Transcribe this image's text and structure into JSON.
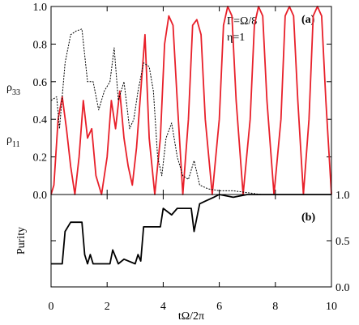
{
  "chart_data": [
    {
      "type": "line",
      "ylabels": [
        {
          "symbol": "ρ",
          "subscript": "33"
        },
        {
          "symbol": "ρ",
          "subscript": "11"
        }
      ],
      "annotations": [
        "Γ=Ω/8",
        "η=1",
        "(a)"
      ],
      "xlim": [
        0,
        10
      ],
      "xticks": [
        0,
        2,
        4,
        6,
        8,
        10
      ],
      "ylim": [
        0,
        1
      ],
      "yticks": [
        {
          "value": 0,
          "label": "0.0"
        },
        0.2,
        0.4,
        0.6,
        0.8,
        {
          "value": 1,
          "label": "1.0"
        }
      ],
      "series": [
        {
          "color": "#e8202a",
          "style": "solid",
          "x": [
            0,
            0.1,
            0.25,
            0.4,
            0.55,
            0.7,
            0.85,
            1.0,
            1.15,
            1.3,
            1.45,
            1.6,
            1.8,
            2.0,
            2.15,
            2.3,
            2.45,
            2.6,
            2.75,
            2.9,
            3.05,
            3.2,
            3.35,
            3.5,
            3.7,
            3.9,
            4.05,
            4.2,
            4.35,
            4.5,
            4.7,
            4.9,
            5.05,
            5.2,
            5.35,
            5.5,
            5.75,
            6.0,
            6.15,
            6.3,
            6.45,
            6.6,
            6.85,
            7.1,
            7.25,
            7.4,
            7.55,
            7.7,
            7.95,
            8.2,
            8.35,
            8.5,
            8.65,
            8.8,
            9.0,
            9.2,
            9.35,
            9.5,
            9.65,
            9.8,
            10.0
          ],
          "values": [
            0,
            0.05,
            0.4,
            0.52,
            0.35,
            0.15,
            0,
            0.2,
            0.5,
            0.3,
            0.35,
            0.1,
            0,
            0.2,
            0.5,
            0.35,
            0.55,
            0.3,
            0.15,
            0.05,
            0.25,
            0.55,
            0.85,
            0.3,
            0,
            0.3,
            0.8,
            0.95,
            0.9,
            0.5,
            0,
            0.4,
            0.9,
            0.93,
            0.85,
            0.4,
            0,
            0.4,
            0.9,
            1.0,
            0.95,
            0.5,
            0,
            0.4,
            0.9,
            1.0,
            0.95,
            0.5,
            0,
            0.4,
            0.95,
            1.0,
            0.95,
            0.5,
            0,
            0.4,
            0.95,
            1.0,
            0.95,
            0.5,
            0
          ]
        },
        {
          "color": "#000000",
          "style": "dotted",
          "x": [
            0,
            0.2,
            0.3,
            0.5,
            0.7,
            0.9,
            1.1,
            1.3,
            1.5,
            1.7,
            1.9,
            2.1,
            2.25,
            2.4,
            2.6,
            2.8,
            2.95,
            3.1,
            3.3,
            3.5,
            3.65,
            3.8,
            3.95,
            4.1,
            4.3,
            4.5,
            4.7,
            4.9,
            5.1,
            5.3,
            5.6,
            6.0,
            6.5,
            7.0,
            7.5,
            8,
            9,
            10
          ],
          "values": [
            0.5,
            0.52,
            0.35,
            0.7,
            0.85,
            0.87,
            0.88,
            0.6,
            0.6,
            0.45,
            0.55,
            0.6,
            0.78,
            0.5,
            0.6,
            0.35,
            0.4,
            0.55,
            0.7,
            0.68,
            0.55,
            0.2,
            0.1,
            0.3,
            0.38,
            0.2,
            0.1,
            0.08,
            0.18,
            0.05,
            0.03,
            0.02,
            0.02,
            0.01,
            0,
            0,
            0,
            0
          ]
        }
      ]
    },
    {
      "type": "line",
      "ylabel": "Purity",
      "xlabel": "tΩ/2π",
      "annotations": [
        "(b)"
      ],
      "xlim": [
        0,
        10
      ],
      "xticks": [
        0,
        2,
        4,
        6,
        8,
        10
      ],
      "y2lim": [
        0,
        1
      ],
      "y2ticks": [
        {
          "value": 0,
          "label": "0.0"
        },
        0.5,
        {
          "value": 1,
          "label": "1.0"
        }
      ],
      "series": [
        {
          "color": "#000000",
          "style": "solid",
          "axis": "y2",
          "x": [
            0,
            0.4,
            0.5,
            0.7,
            1.1,
            1.2,
            1.3,
            1.4,
            1.5,
            2.1,
            2.2,
            2.4,
            2.6,
            3.0,
            3.1,
            3.2,
            3.3,
            3.9,
            4.0,
            4.3,
            4.5,
            5.0,
            5.1,
            5.3,
            5.8,
            6.0,
            6.5,
            7.0,
            10
          ],
          "values": [
            0.25,
            0.25,
            0.6,
            0.7,
            0.7,
            0.35,
            0.25,
            0.35,
            0.25,
            0.25,
            0.4,
            0.25,
            0.3,
            0.25,
            0.35,
            0.28,
            0.65,
            0.65,
            0.85,
            0.78,
            0.85,
            0.85,
            0.6,
            0.9,
            0.97,
            1.0,
            0.97,
            1.0,
            1.0
          ]
        }
      ]
    }
  ]
}
